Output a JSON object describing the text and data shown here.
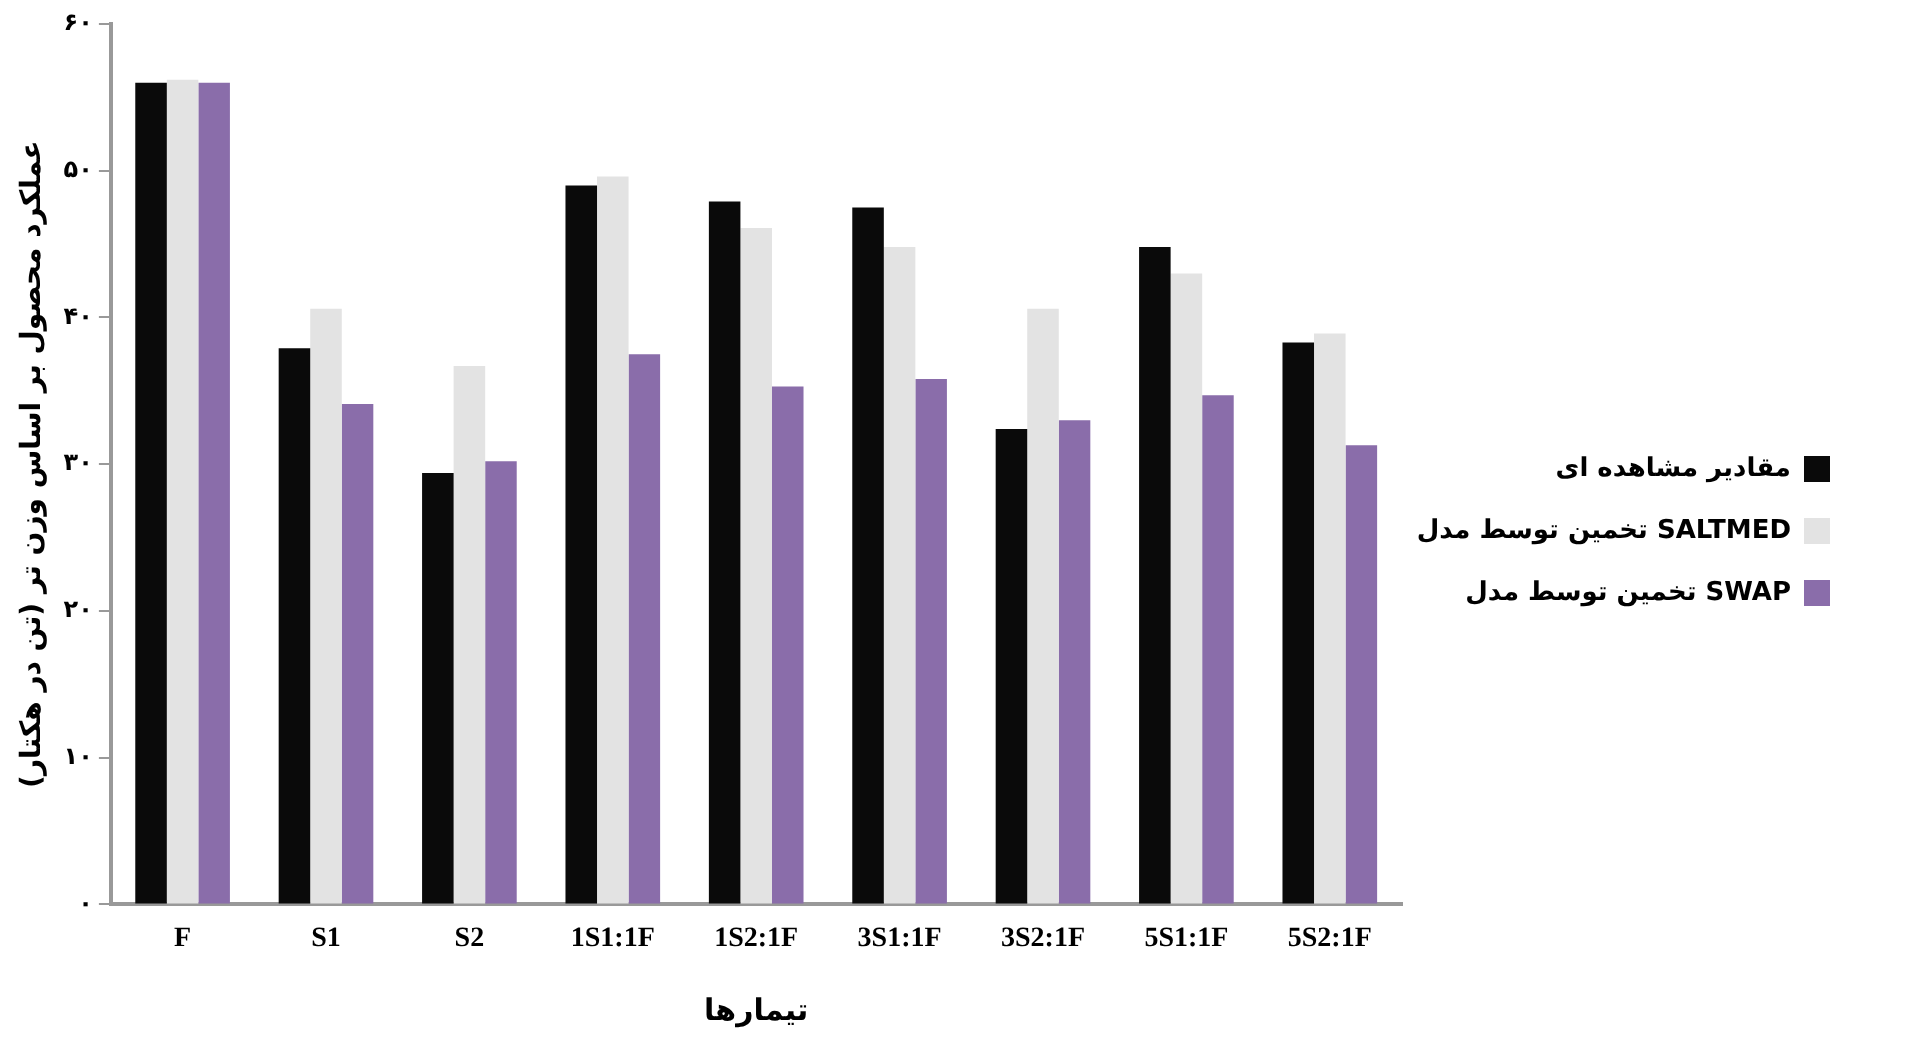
{
  "chart_data": {
    "type": "bar",
    "xlabel": "تیمارها",
    "ylabel": "عملکرد محصول بر اساس وزن تر (تن در هکتار)",
    "categories": [
      "F",
      "S1",
      "S2",
      "1S1:1F",
      "1S2:1F",
      "3S1:1F",
      "3S2:1F",
      "5S1:1F",
      "5S2:1F"
    ],
    "series": [
      {
        "name": "مقادیر مشاهده ای",
        "color": "#0a0a0a",
        "values": [
          56.0,
          37.9,
          29.4,
          49.0,
          47.9,
          47.5,
          32.4,
          44.8,
          38.3
        ]
      },
      {
        "name": "تخمین توسط مدل SALTMED",
        "color": "#e3e3e3",
        "values": [
          56.2,
          40.6,
          36.7,
          49.6,
          46.1,
          44.8,
          40.6,
          43.0,
          38.9
        ]
      },
      {
        "name": "تخمین توسط مدل SWAP",
        "color": "#8a6daa",
        "values": [
          56.0,
          34.1,
          30.2,
          37.5,
          35.3,
          35.8,
          33.0,
          34.7,
          31.3
        ]
      }
    ],
    "ylim": [
      0,
      60
    ],
    "yticks": [
      {
        "value": 0,
        "label": "۰"
      },
      {
        "value": 10,
        "label": "۱۰"
      },
      {
        "value": 20,
        "label": "۲۰"
      },
      {
        "value": 30,
        "label": "۳۰"
      },
      {
        "value": 40,
        "label": "۴۰"
      },
      {
        "value": 50,
        "label": "۵۰"
      },
      {
        "value": 60,
        "label": "۶۰"
      }
    ],
    "grid": false,
    "legend": "right"
  }
}
